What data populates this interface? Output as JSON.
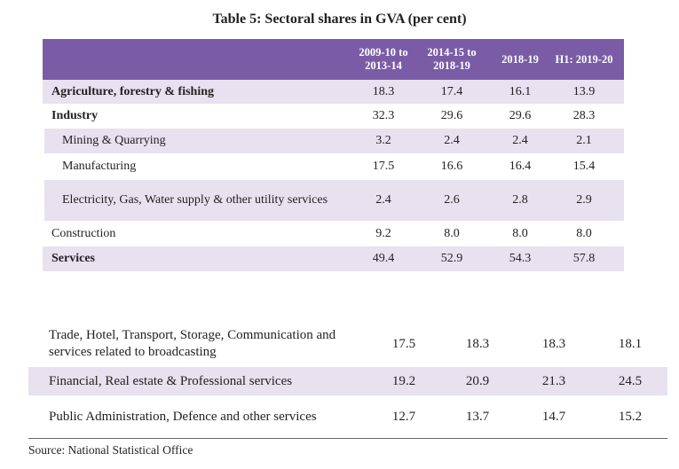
{
  "title": "Table 5: Sectoral shares in GVA (per cent)",
  "table": {
    "header": [
      "2009-10 to 2013-14",
      "2014-15 to 2018-19",
      "2018-19",
      "H1: 2019-20"
    ],
    "rows": [
      {
        "label": "Agriculture, forestry & fishing",
        "values": [
          "18.3",
          "17.4",
          "16.1",
          "13.9"
        ]
      },
      {
        "label": "Industry",
        "values": [
          "32.3",
          "29.6",
          "29.6",
          "28.3"
        ]
      },
      {
        "label": "Mining & Quarrying",
        "values": [
          "3.2",
          "2.4",
          "2.4",
          "2.1"
        ]
      },
      {
        "label": "Manufacturing",
        "values": [
          "17.5",
          "16.6",
          "16.4",
          "15.4"
        ]
      },
      {
        "label": "Electricity, Gas, Water supply & other utility services",
        "values": [
          "2.4",
          "2.6",
          "2.8",
          "2.9"
        ]
      },
      {
        "label": "Construction",
        "values": [
          "9.2",
          "8.0",
          "8.0",
          "8.0"
        ]
      },
      {
        "label": "Services",
        "values": [
          "49.4",
          "52.9",
          "54.3",
          "57.8"
        ]
      }
    ]
  },
  "table2": {
    "rows": [
      {
        "label": "Trade, Hotel, Transport, Storage, Communication and services related to broadcasting",
        "values": [
          "17.5",
          "18.3",
          "18.3",
          "18.1"
        ]
      },
      {
        "label": "Financial, Real estate & Professional services",
        "values": [
          "19.2",
          "20.9",
          "21.3",
          "24.5"
        ]
      },
      {
        "label": "Public Administration, Defence and other services",
        "values": [
          "12.7",
          "13.7",
          "14.7",
          "15.2"
        ]
      }
    ]
  },
  "source": "Source: National Statistical Office"
}
